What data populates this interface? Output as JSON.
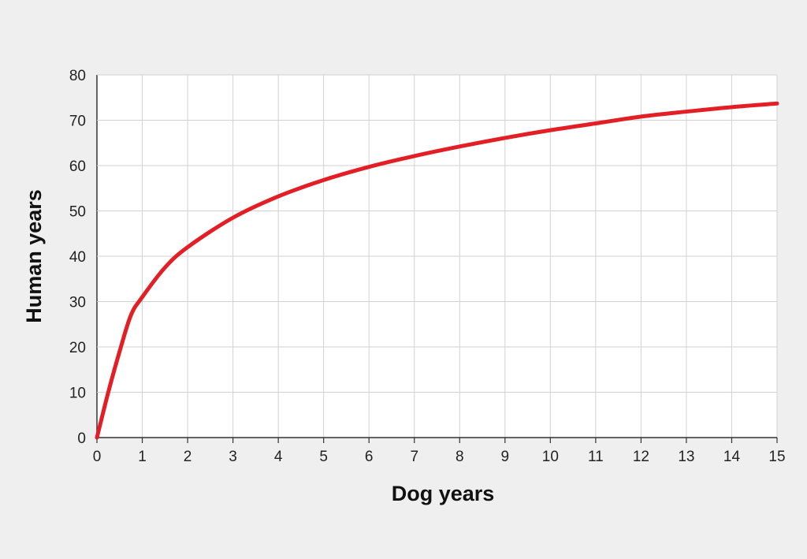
{
  "chart_data": {
    "type": "line",
    "title": "",
    "xlabel": "Dog years",
    "ylabel": "Human years",
    "xlim": [
      0,
      15
    ],
    "ylim": [
      0,
      80
    ],
    "xticks": [
      0,
      1,
      2,
      3,
      4,
      5,
      6,
      7,
      8,
      9,
      10,
      11,
      12,
      13,
      14,
      15
    ],
    "yticks": [
      0,
      10,
      20,
      30,
      40,
      50,
      60,
      70,
      80
    ],
    "grid": true,
    "legend": "none",
    "series": [
      {
        "color": "#e31e24",
        "x": [
          0,
          0.25,
          0.5,
          0.75,
          1,
          1.5,
          2,
          3,
          4,
          5,
          6,
          7,
          8,
          9,
          10,
          11,
          12,
          13,
          14,
          15
        ],
        "y": [
          0,
          10,
          19,
          27,
          31,
          37.5,
          42,
          48.5,
          53.2,
          56.8,
          59.7,
          62.1,
          64.2,
          66.1,
          67.8,
          69.3,
          70.8,
          71.9,
          72.9,
          73.7
        ]
      }
    ]
  }
}
